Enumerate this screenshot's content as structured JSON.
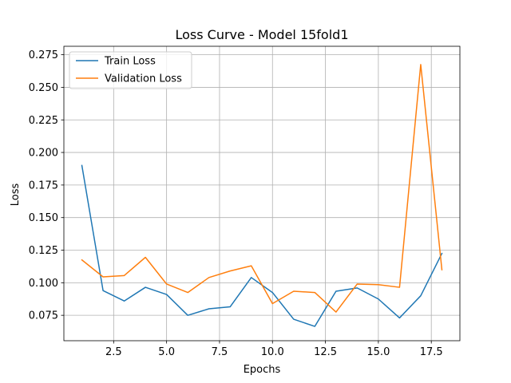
{
  "chart_data": {
    "type": "line",
    "title": "Loss Curve - Model 15fold1",
    "xlabel": "Epochs",
    "ylabel": "Loss",
    "xlim": [
      0.15,
      18.85
    ],
    "ylim": [
      0.0555,
      0.2815
    ],
    "xticks": [
      2.5,
      5.0,
      7.5,
      10.0,
      12.5,
      15.0,
      17.5
    ],
    "xtick_labels": [
      "2.5",
      "5.0",
      "7.5",
      "10.0",
      "12.5",
      "15.0",
      "17.5"
    ],
    "yticks": [
      0.075,
      0.1,
      0.125,
      0.15,
      0.175,
      0.2,
      0.225,
      0.25,
      0.275
    ],
    "ytick_labels": [
      "0.075",
      "0.100",
      "0.125",
      "0.150",
      "0.175",
      "0.200",
      "0.225",
      "0.250",
      "0.275"
    ],
    "grid": true,
    "legend_position": "top-left",
    "x": [
      1,
      2,
      3,
      4,
      5,
      6,
      7,
      8,
      9,
      10,
      11,
      12,
      13,
      14,
      15,
      16,
      17,
      18
    ],
    "series": [
      {
        "name": "Train Loss",
        "color": "#1f77b4",
        "values": [
          0.19,
          0.094,
          0.086,
          0.0965,
          0.091,
          0.075,
          0.08,
          0.0815,
          0.104,
          0.0925,
          0.072,
          0.0665,
          0.0935,
          0.096,
          0.0875,
          0.073,
          0.09,
          0.1225
        ]
      },
      {
        "name": "Validation Loss",
        "color": "#ff7f0e",
        "values": [
          0.1175,
          0.1045,
          0.1055,
          0.1195,
          0.099,
          0.0925,
          0.104,
          0.109,
          0.113,
          0.084,
          0.0935,
          0.0925,
          0.0775,
          0.099,
          0.0985,
          0.0965,
          0.2675,
          0.11
        ]
      }
    ]
  }
}
